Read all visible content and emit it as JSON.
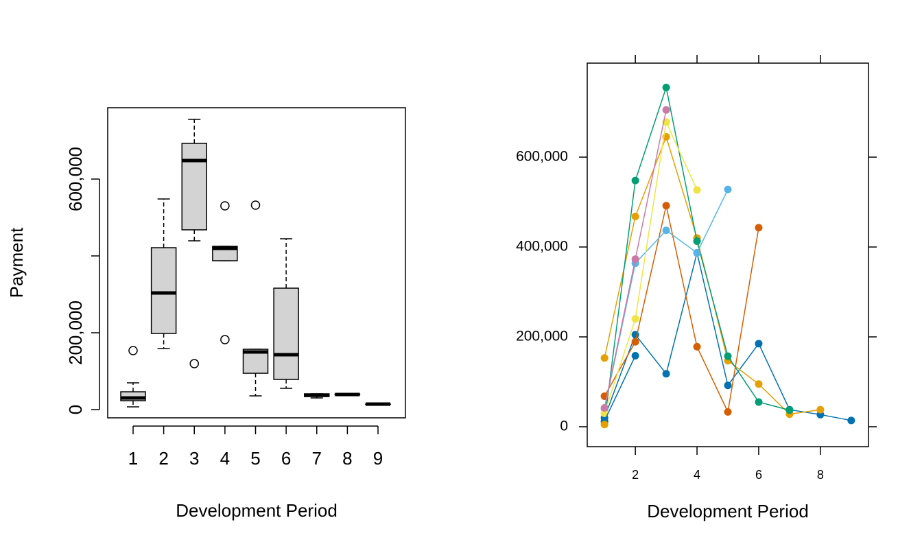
{
  "chart_data": [
    {
      "type": "box",
      "x_label": "Development Period",
      "y_label": "Payment",
      "categories": [
        "1",
        "2",
        "3",
        "4",
        "5",
        "6",
        "7",
        "8",
        "9"
      ],
      "boxes": [
        {
          "whisker_low": 7100,
          "q1": 23200,
          "median": 30400,
          "q3": 46400,
          "whisker_high": 69600,
          "outliers": [
            153600
          ]
        },
        {
          "whisker_low": 159000,
          "q1": 198200,
          "median": 303600,
          "q3": 421400,
          "whisker_high": 548200,
          "outliers": []
        },
        {
          "whisker_low": 439300,
          "q1": 467900,
          "median": 648200,
          "q3": 692900,
          "whisker_high": 755400,
          "outliers": [
            119600
          ]
        },
        {
          "whisker_low": 387500,
          "q1": 387500,
          "median": 419600,
          "q3": 425000,
          "whisker_high": 425000,
          "outliers": [
            530400,
            182100
          ]
        },
        {
          "whisker_low": 35700,
          "q1": 94600,
          "median": 150000,
          "q3": 157100,
          "whisker_high": 157100,
          "outliers": [
            532100
          ]
        },
        {
          "whisker_low": 55400,
          "q1": 78600,
          "median": 142900,
          "q3": 316100,
          "whisker_high": 444600,
          "outliers": []
        },
        {
          "whisker_low": 30400,
          "q1": 33900,
          "median": 37500,
          "q3": 41100,
          "whisker_high": 41100,
          "outliers": []
        },
        {
          "whisker_low": 37500,
          "q1": 38500,
          "median": 39300,
          "q3": 40500,
          "whisker_high": 42000,
          "outliers": []
        },
        {
          "whisker_low": 14300,
          "q1": 14300,
          "median": 14300,
          "q3": 14300,
          "whisker_high": 14300,
          "outliers": []
        }
      ],
      "color": "#d3d3d3",
      "ylim": [
        -21400,
        785700
      ],
      "yticks": [
        0,
        {
          "value": 200000,
          "label": "200,000"
        },
        {
          "value": 400000,
          "label": null
        },
        {
          "value": 600000,
          "label": "600,000"
        }
      ]
    },
    {
      "type": "line",
      "x_label": "Development Period",
      "x": [
        1,
        2,
        3,
        4,
        5,
        6,
        7,
        8,
        9
      ],
      "series": [
        {
          "color": "#0072B2",
          "values": [
            20000,
            205000,
            118000,
            387000,
            92000,
            185000,
            38000,
            27000,
            14000
          ]
        },
        {
          "color": "#E69F00",
          "values": [
            153000,
            468000,
            645000,
            420000,
            147000,
            95000,
            28000,
            38000,
            null
          ]
        },
        {
          "color": "#009E73",
          "values": [
            10000,
            548000,
            755000,
            413000,
            157000,
            55000,
            37000,
            null,
            null
          ]
        },
        {
          "color": "#D55E00",
          "values": [
            68000,
            189000,
            492000,
            178000,
            33000,
            443000,
            null,
            null,
            null
          ]
        },
        {
          "color": "#56B4E9",
          "values": [
            40000,
            364000,
            437000,
            387000,
            528000,
            null,
            null,
            null,
            null
          ]
        },
        {
          "color": "#F0E442",
          "values": [
            30000,
            240000,
            678000,
            527000,
            null,
            null,
            null,
            null,
            null
          ]
        },
        {
          "color": "#CC79A7",
          "values": [
            42000,
            373000,
            705000,
            null,
            null,
            null,
            null,
            null,
            null
          ]
        },
        {
          "color": "#0072B2",
          "values": [
            13000,
            158000,
            null,
            null,
            null,
            null,
            null,
            null,
            null
          ]
        },
        {
          "color": "#E69F00",
          "values": [
            5000,
            null,
            null,
            null,
            null,
            null,
            null,
            null,
            null
          ]
        }
      ],
      "xlim": [
        0.44,
        9.56
      ],
      "xticks": [
        2,
        4,
        6,
        8
      ],
      "ylim": [
        -44300,
        809200
      ],
      "yticks": [
        0,
        {
          "value": 200000,
          "label": "200,000"
        },
        {
          "value": 400000,
          "label": "400,000"
        },
        {
          "value": 600000,
          "label": "600,000"
        }
      ]
    }
  ]
}
